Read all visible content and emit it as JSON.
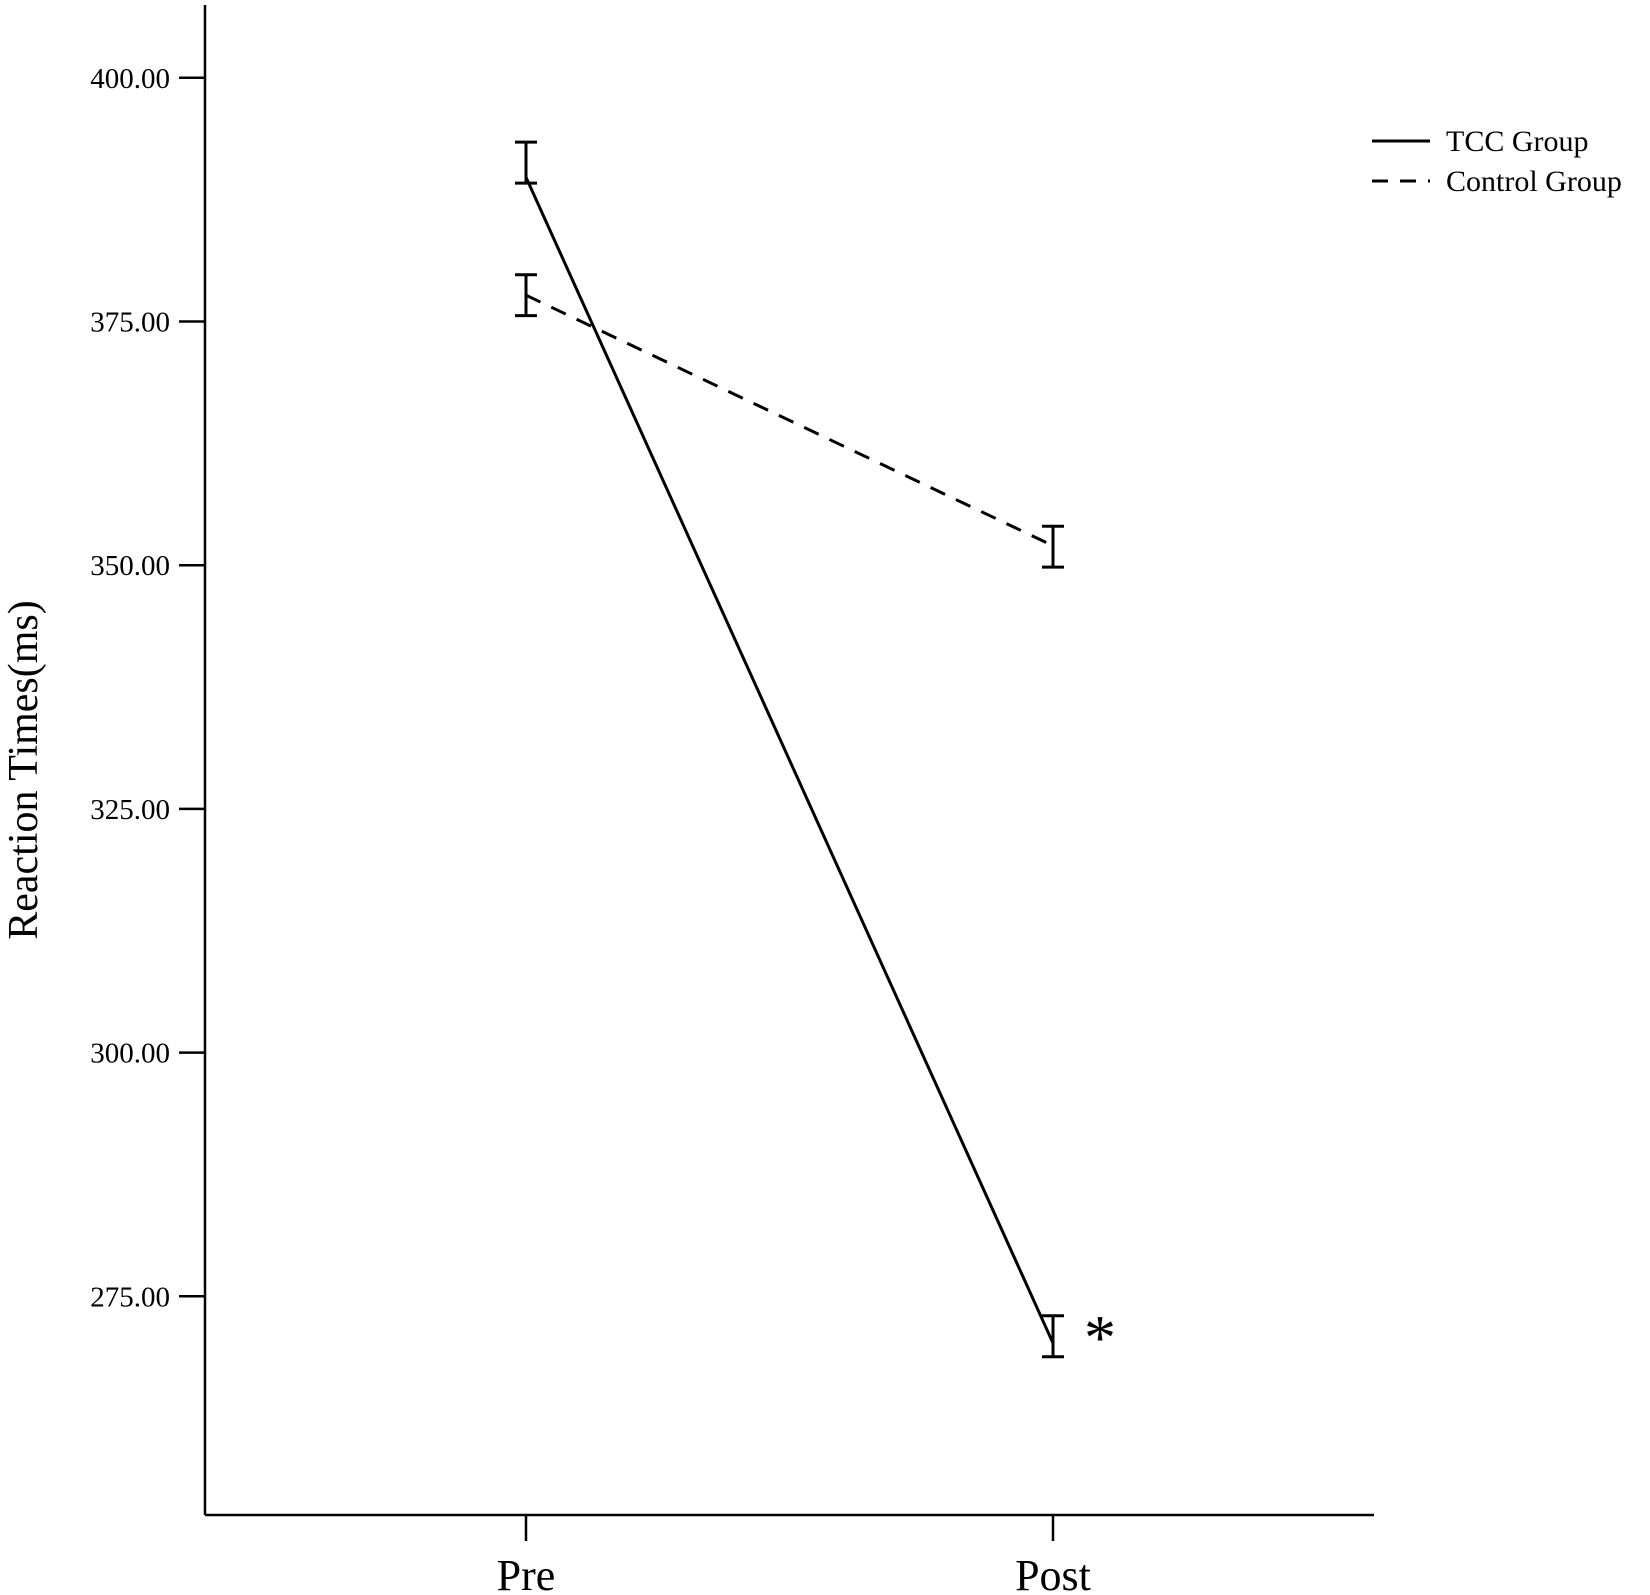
{
  "chart_data": {
    "type": "line",
    "categories": [
      "Pre",
      "Post"
    ],
    "ylabel": "Reaction Times(ms)",
    "xlabel": "",
    "ylim": [
      255,
      407
    ],
    "yticks": [
      "275.00",
      "300.00",
      "325.00",
      "350.00",
      "375.00",
      "400.00"
    ],
    "series": [
      {
        "name": "TCC Group",
        "style": "solid",
        "values": [
          389.8,
          270.2
        ],
        "error": [
          [
            389.2,
            393.4
          ],
          [
            268.8,
            273.0
          ]
        ]
      },
      {
        "name": "Control Group",
        "style": "dashed",
        "values": [
          377.7,
          352.0
        ],
        "error": [
          [
            375.6,
            379.8
          ],
          [
            349.8,
            354.0
          ]
        ]
      }
    ],
    "annotation": "*",
    "legend_position": "top-right",
    "grid": false
  }
}
